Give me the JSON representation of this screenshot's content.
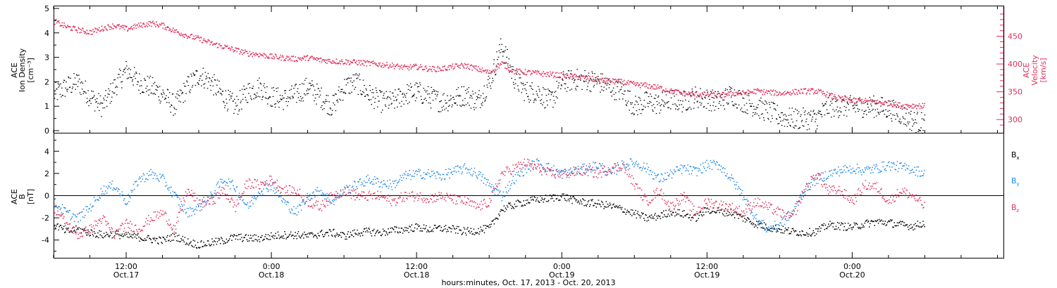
{
  "xaxis": {
    "title": "hours:minutes, Oct. 17, 2013 - Oct. 20, 2013",
    "range_hours": [
      6,
      84.5
    ],
    "ticks": [
      {
        "hour": 12,
        "time": "12:00",
        "date": "Oct.17"
      },
      {
        "hour": 24,
        "time": "0:00",
        "date": "Oct.18"
      },
      {
        "hour": 36,
        "time": "12:00",
        "date": "Oct.18"
      },
      {
        "hour": 48,
        "time": "0:00",
        "date": "Oct.19"
      },
      {
        "hour": 60,
        "time": "12:00",
        "date": "Oct.19"
      },
      {
        "hour": 72,
        "time": "0:00",
        "date": "Oct.20"
      }
    ]
  },
  "colors": {
    "black": "#000000",
    "red": "#e0305a",
    "blue": "#1e88e5"
  },
  "chart_data": [
    {
      "type": "scatter",
      "panel": "top",
      "ylabel_left": [
        "ACE",
        "Ion Density",
        "[cm⁻³]"
      ],
      "ylabel_right": [
        "ACE",
        "Velocity",
        "[km/s]"
      ],
      "ylim_left": [
        0,
        5
      ],
      "yticks_left": [
        "0",
        "1",
        "2",
        "3",
        "4",
        "5"
      ],
      "ylim_right": [
        280,
        500
      ],
      "yticks_right": [
        "300",
        "350",
        "400",
        "450"
      ],
      "series": [
        {
          "axis": "left",
          "color": "#000000",
          "x": [
            6,
            7,
            8,
            9,
            10,
            11,
            12,
            13,
            14,
            15,
            16,
            17,
            18,
            19,
            20,
            21,
            22,
            23,
            24,
            25,
            26,
            27,
            28,
            29,
            30,
            31,
            32,
            33,
            34,
            35,
            36,
            37,
            38,
            39,
            40,
            41,
            42,
            43,
            44,
            45,
            46,
            47,
            48,
            49,
            50,
            51,
            52,
            53,
            54,
            55,
            56,
            57,
            58,
            59,
            60,
            61,
            62,
            63,
            64,
            65,
            66,
            67,
            68,
            69,
            70,
            71,
            72,
            73,
            74,
            75,
            76,
            77,
            78
          ],
          "values": [
            1.5,
            1.8,
            2.0,
            1.4,
            1.0,
            1.8,
            2.5,
            2.0,
            1.8,
            1.5,
            1.0,
            1.8,
            2.3,
            2.0,
            1.4,
            1.0,
            1.6,
            1.8,
            1.4,
            1.3,
            1.5,
            1.8,
            1.4,
            1.0,
            1.8,
            2.0,
            1.5,
            1.2,
            1.2,
            1.5,
            1.6,
            1.4,
            1.2,
            1.3,
            1.5,
            1.2,
            2.0,
            3.5,
            2.2,
            1.6,
            1.6,
            1.2,
            2.0,
            2.1,
            2.1,
            2.0,
            1.8,
            1.6,
            1.0,
            1.2,
            1.1,
            1.3,
            1.2,
            1.4,
            1.3,
            1.2,
            1.5,
            1.2,
            1.0,
            0.8,
            0.6,
            0.5,
            0.5,
            0.5,
            1.0,
            1.0,
            1.0,
            1.0,
            1.0,
            0.9,
            0.7,
            0.4,
            0.3
          ]
        },
        {
          "axis": "right",
          "color": "#e0305a",
          "x": [
            6,
            7,
            8,
            9,
            10,
            11,
            12,
            13,
            14,
            15,
            16,
            17,
            18,
            19,
            20,
            21,
            22,
            23,
            24,
            25,
            26,
            27,
            28,
            29,
            30,
            31,
            32,
            33,
            34,
            35,
            36,
            37,
            38,
            39,
            40,
            41,
            42,
            43,
            44,
            45,
            46,
            47,
            48,
            49,
            50,
            51,
            52,
            53,
            54,
            55,
            56,
            57,
            58,
            59,
            60,
            61,
            62,
            63,
            64,
            65,
            66,
            67,
            68,
            69,
            70,
            71,
            72,
            73,
            74,
            75,
            76,
            77,
            78
          ],
          "values": [
            478,
            468,
            462,
            458,
            465,
            470,
            464,
            470,
            474,
            470,
            460,
            452,
            446,
            438,
            432,
            426,
            420,
            418,
            414,
            412,
            410,
            412,
            408,
            406,
            405,
            404,
            402,
            400,
            398,
            394,
            396,
            392,
            392,
            396,
            398,
            392,
            385,
            402,
            388,
            386,
            384,
            382,
            380,
            378,
            376,
            372,
            370,
            368,
            364,
            362,
            358,
            352,
            348,
            346,
            346,
            344,
            348,
            348,
            352,
            350,
            348,
            350,
            352,
            352,
            345,
            338,
            335,
            334,
            332,
            330,
            326,
            326,
            325
          ]
        }
      ]
    },
    {
      "type": "scatter",
      "panel": "bottom",
      "ylabel_left": [
        "ACE",
        "B",
        "[nT]"
      ],
      "ylim": [
        -5.6,
        5.6
      ],
      "yticks": [
        "-4",
        "-2",
        "0",
        "2",
        "4"
      ],
      "series": [
        {
          "name": "Bx",
          "color": "#000000",
          "x": [
            6,
            7,
            8,
            9,
            10,
            11,
            12,
            13,
            14,
            15,
            16,
            17,
            18,
            19,
            20,
            21,
            22,
            23,
            24,
            25,
            26,
            27,
            28,
            29,
            30,
            31,
            32,
            33,
            34,
            35,
            36,
            37,
            38,
            39,
            40,
            41,
            42,
            43,
            44,
            45,
            46,
            47,
            48,
            49,
            50,
            51,
            52,
            53,
            54,
            55,
            56,
            57,
            58,
            59,
            60,
            61,
            62,
            63,
            64,
            65,
            66,
            67,
            68,
            69,
            70,
            71,
            72,
            73,
            74,
            75,
            76,
            77,
            78
          ],
          "values": [
            -2.5,
            -3.2,
            -3.0,
            -3.3,
            -3.5,
            -3.4,
            -3.6,
            -3.7,
            -3.9,
            -4.0,
            -3.6,
            -4.1,
            -4.4,
            -4.2,
            -4.0,
            -3.7,
            -3.8,
            -3.8,
            -3.6,
            -3.5,
            -3.5,
            -3.6,
            -3.4,
            -3.3,
            -3.6,
            -3.3,
            -3.2,
            -3.3,
            -3.1,
            -3.0,
            -2.8,
            -3.0,
            -2.9,
            -3.0,
            -3.2,
            -3.1,
            -2.9,
            -1.2,
            -0.8,
            -0.5,
            -0.3,
            -0.2,
            0.0,
            -0.4,
            -0.6,
            -0.7,
            -0.9,
            -1.2,
            -1.6,
            -2.0,
            -1.8,
            -1.4,
            -1.6,
            -2.0,
            -1.2,
            -1.4,
            -1.5,
            -2.0,
            -2.5,
            -2.8,
            -3.0,
            -3.2,
            -3.3,
            -3.2,
            -2.6,
            -2.7,
            -2.8,
            -2.5,
            -2.3,
            -2.4,
            -2.6,
            -2.7,
            -2.4
          ]
        },
        {
          "name": "By",
          "color": "#1e88e5",
          "x": [
            6,
            7,
            8,
            9,
            10,
            11,
            12,
            13,
            14,
            15,
            16,
            17,
            18,
            19,
            20,
            21,
            22,
            23,
            24,
            25,
            26,
            27,
            28,
            29,
            30,
            31,
            32,
            33,
            34,
            35,
            36,
            37,
            38,
            39,
            40,
            41,
            42,
            43,
            44,
            45,
            46,
            47,
            48,
            49,
            50,
            51,
            52,
            53,
            54,
            55,
            56,
            57,
            58,
            59,
            60,
            61,
            62,
            63,
            64,
            65,
            66,
            67,
            68,
            69,
            70,
            71,
            72,
            73,
            74,
            75,
            76,
            77,
            78
          ],
          "values": [
            -0.5,
            -1.5,
            -2.0,
            -1.0,
            0.5,
            1.0,
            -0.5,
            1.5,
            2.0,
            1.5,
            0.0,
            -1.5,
            -1.0,
            0.0,
            1.5,
            0.8,
            -1.0,
            0.5,
            1.0,
            -0.5,
            -1.5,
            0.0,
            0.5,
            -0.5,
            0.5,
            1.0,
            1.5,
            1.2,
            1.0,
            1.8,
            2.0,
            2.0,
            1.8,
            2.2,
            2.5,
            2.0,
            1.0,
            0.0,
            1.5,
            2.5,
            3.0,
            2.5,
            2.0,
            2.2,
            2.5,
            2.8,
            2.0,
            2.8,
            3.0,
            2.5,
            1.5,
            2.0,
            2.5,
            2.2,
            2.8,
            2.8,
            1.5,
            0.0,
            -2.0,
            -3.0,
            -2.5,
            -1.5,
            0.5,
            1.5,
            2.0,
            2.3,
            2.5,
            2.3,
            2.5,
            2.8,
            2.6,
            2.4,
            2.0
          ]
        },
        {
          "name": "Bz",
          "color": "#e0305a",
          "x": [
            6,
            7,
            8,
            9,
            10,
            11,
            12,
            13,
            14,
            15,
            16,
            17,
            18,
            19,
            20,
            21,
            22,
            23,
            24,
            25,
            26,
            27,
            28,
            29,
            30,
            31,
            32,
            33,
            34,
            35,
            36,
            37,
            38,
            39,
            40,
            41,
            42,
            43,
            44,
            45,
            46,
            47,
            48,
            49,
            50,
            51,
            52,
            53,
            54,
            55,
            56,
            57,
            58,
            59,
            60,
            61,
            62,
            63,
            64,
            65,
            66,
            67,
            68,
            69,
            70,
            71,
            72,
            73,
            74,
            75,
            76,
            77,
            78
          ],
          "values": [
            -1.0,
            -2.5,
            -3.5,
            -3.0,
            -2.0,
            -3.5,
            -2.5,
            -3.0,
            -2.0,
            -1.5,
            -3.0,
            0.5,
            -0.5,
            -0.5,
            0.5,
            -1.0,
            1.2,
            1.0,
            1.5,
            0.5,
            0.5,
            -0.5,
            -1.0,
            0.0,
            0.5,
            0.0,
            0.0,
            0.0,
            -0.5,
            0.0,
            0.0,
            -0.2,
            0.0,
            -0.3,
            -0.5,
            -1.0,
            -0.5,
            2.0,
            2.5,
            3.0,
            2.5,
            2.0,
            2.0,
            2.2,
            2.3,
            2.0,
            2.5,
            2.8,
            1.0,
            -0.5,
            0.5,
            -1.0,
            0.0,
            -1.5,
            -0.5,
            -0.8,
            -1.0,
            -1.5,
            -0.5,
            -1.0,
            -1.5,
            -2.0,
            0.5,
            2.0,
            0.5,
            0.5,
            -0.5,
            1.0,
            0.8,
            -0.5,
            0.5,
            0.0,
            -1.0
          ]
        }
      ],
      "legend": [
        {
          "name": "Bx",
          "base": "B",
          "sub": "x",
          "color": "#000000"
        },
        {
          "name": "By",
          "base": "B",
          "sub": "y",
          "color": "#1e88e5"
        },
        {
          "name": "Bz",
          "base": "B",
          "sub": "z",
          "color": "#e0305a"
        }
      ]
    }
  ]
}
